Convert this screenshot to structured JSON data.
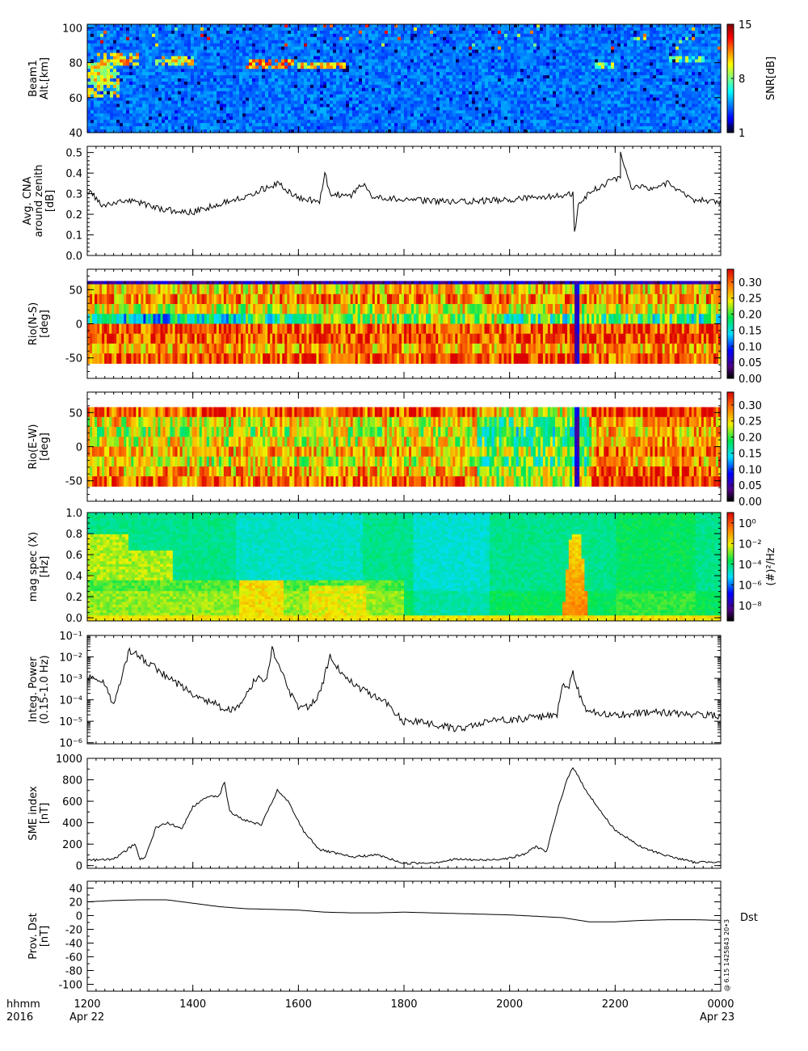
{
  "chart_data": [
    {
      "type": "heatmap",
      "ylabel_lines": [
        "Beam1",
        "Alt.[km]"
      ],
      "yticks": [
        "100",
        "80",
        "60",
        "40"
      ],
      "ytick_values": [
        100,
        80,
        60,
        40
      ],
      "ylim": [
        40,
        102
      ],
      "colorbar": {
        "label": "SNR[dB]",
        "ticks": [
          "15",
          "8",
          "1"
        ],
        "tick_values": [
          15,
          8,
          1
        ],
        "range": [
          1,
          15
        ]
      },
      "features": [
        {
          "t_start": 12.0,
          "t_end": 12.6,
          "alt_center": 70,
          "alt_halfwidth": 10,
          "level": 0.6
        },
        {
          "t_start": 12.2,
          "t_end": 13.0,
          "alt_center": 82,
          "alt_halfwidth": 3,
          "level": 0.7
        },
        {
          "t_start": 13.3,
          "t_end": 14.0,
          "alt_center": 81,
          "alt_halfwidth": 2,
          "level": 0.6
        },
        {
          "t_start": 15.0,
          "t_end": 15.9,
          "alt_center": 79,
          "alt_halfwidth": 3,
          "level": 0.75
        },
        {
          "t_start": 16.0,
          "t_end": 16.9,
          "alt_center": 79,
          "alt_halfwidth": 2,
          "level": 0.65
        },
        {
          "t_start": 21.6,
          "t_end": 22.0,
          "alt_center": 78,
          "alt_halfwidth": 2,
          "level": 0.5
        },
        {
          "t_start": 23.0,
          "t_end": 23.8,
          "alt_center": 82,
          "alt_halfwidth": 2,
          "level": 0.5
        }
      ]
    },
    {
      "type": "line",
      "ylabel_lines": [
        "Avg. CNA",
        "around zenith",
        "[dB]"
      ],
      "yticks": [
        "0.5",
        "0.4",
        "0.3",
        "0.2",
        "0.1",
        "0.0"
      ],
      "ytick_values": [
        0.5,
        0.4,
        0.3,
        0.2,
        0.1,
        0.0
      ],
      "ylim": [
        0,
        0.53
      ],
      "x": [
        12.0,
        12.3,
        12.8,
        13.5,
        14.0,
        14.5,
        15.0,
        15.6,
        16.0,
        16.4,
        16.5,
        16.6,
        17.0,
        17.2,
        17.4,
        18.0,
        19.0,
        20.0,
        20.5,
        21.0,
        21.2,
        21.23,
        21.3,
        21.6,
        21.9,
        22.1,
        22.1,
        22.3,
        22.7,
        23.0,
        23.5,
        24.0
      ],
      "y": [
        0.32,
        0.24,
        0.27,
        0.22,
        0.21,
        0.25,
        0.29,
        0.35,
        0.28,
        0.26,
        0.4,
        0.3,
        0.29,
        0.35,
        0.29,
        0.27,
        0.26,
        0.27,
        0.28,
        0.29,
        0.3,
        0.11,
        0.25,
        0.32,
        0.36,
        0.38,
        0.5,
        0.33,
        0.33,
        0.35,
        0.27,
        0.26
      ]
    },
    {
      "type": "heatmap",
      "ylabel_lines": [
        "Rio(N-S)",
        "[deg]"
      ],
      "yticks": [
        "50",
        "0",
        "-50"
      ],
      "ytick_values": [
        50,
        0,
        -50
      ],
      "ylim": [
        -80,
        80
      ],
      "colorbar": {
        "ticks": [
          "0.30",
          "0.25",
          "0.20",
          "0.15",
          "0.10",
          "0.05",
          "0.00"
        ],
        "tick_values": [
          0.3,
          0.25,
          0.2,
          0.15,
          0.1,
          0.05,
          0.0
        ],
        "range": [
          0,
          0.34
        ]
      }
    },
    {
      "type": "heatmap",
      "ylabel_lines": [
        "Rio(E-W)",
        "[deg]"
      ],
      "yticks": [
        "50",
        "0",
        "-50"
      ],
      "ytick_values": [
        50,
        0,
        -50
      ],
      "ylim": [
        -80,
        80
      ],
      "colorbar": {
        "ticks": [
          "0.30",
          "0.25",
          "0.20",
          "0.15",
          "0.10",
          "0.05",
          "0.00"
        ],
        "tick_values": [
          0.3,
          0.25,
          0.2,
          0.15,
          0.1,
          0.05,
          0.0
        ],
        "range": [
          0,
          0.34
        ]
      }
    },
    {
      "type": "heatmap",
      "ylabel_lines": [
        "mag spec (X)",
        "[Hz]"
      ],
      "yticks": [
        "1.0",
        "0.8",
        "0.6",
        "0.4",
        "0.2",
        "0.0"
      ],
      "ytick_values": [
        1.0,
        0.8,
        0.6,
        0.4,
        0.2,
        0.0
      ],
      "ylim": [
        -0.03,
        1.0
      ],
      "colorbar": {
        "label": "(#)²/Hz",
        "ticks": [
          "10⁰",
          "10⁻²",
          "10⁻⁴",
          "10⁻⁶",
          "10⁻⁸"
        ],
        "tick_exponents": [
          0,
          -2,
          -4,
          -6,
          -8
        ],
        "range_exponent": [
          -9.5,
          1
        ]
      }
    },
    {
      "type": "line",
      "log_y": true,
      "ylabel_lines": [
        "Integ. Power",
        "(0.15-1.0 Hz)"
      ],
      "yticks": [
        "10⁻¹",
        "10⁻²",
        "10⁻³",
        "10⁻⁴",
        "10⁻⁵",
        "10⁻⁶"
      ],
      "ytick_exponents": [
        -1,
        -2,
        -3,
        -4,
        -5,
        -6
      ],
      "ylim_exponent": [
        -6.05,
        -1
      ],
      "x": [
        12.0,
        12.3,
        12.5,
        12.8,
        13.0,
        13.3,
        13.6,
        14.0,
        14.5,
        14.8,
        15.0,
        15.2,
        15.4,
        15.5,
        15.8,
        16.0,
        16.2,
        16.4,
        16.6,
        16.8,
        17.2,
        17.6,
        18.0,
        18.5,
        19.0,
        19.5,
        20.0,
        20.5,
        20.9,
        21.0,
        21.1,
        21.2,
        21.3,
        21.4,
        21.6,
        22.0,
        22.5,
        23.0,
        23.5,
        24.0
      ],
      "y": [
        0.0012,
        0.0008,
        5e-05,
        0.02,
        0.01,
        0.003,
        0.0008,
        0.0002,
        5e-05,
        3e-05,
        0.0002,
        0.001,
        0.001,
        0.03,
        0.0003,
        4e-05,
        5e-05,
        0.0002,
        0.01,
        0.002,
        0.0003,
        0.0001,
        1e-05,
        8e-06,
        4e-06,
        1e-05,
        1.2e-05,
        1.5e-05,
        2e-05,
        0.0006,
        0.0003,
        0.002,
        0.0003,
        4e-05,
        3e-05,
        2e-05,
        2.5e-05,
        2.5e-05,
        2e-05,
        1.8e-05
      ]
    },
    {
      "type": "line",
      "ylabel_lines": [
        "SME index",
        "[nT]"
      ],
      "yticks": [
        "1000",
        "800",
        "600",
        "400",
        "200",
        "0"
      ],
      "ytick_values": [
        1000,
        800,
        600,
        400,
        200,
        0
      ],
      "ylim": [
        -25,
        1000
      ],
      "x": [
        12.0,
        12.5,
        12.9,
        13.0,
        13.1,
        13.2,
        13.3,
        13.5,
        13.8,
        14.0,
        14.3,
        14.5,
        14.6,
        14.7,
        15.0,
        15.3,
        15.6,
        15.8,
        16.1,
        16.4,
        17.0,
        17.5,
        18.0,
        18.6,
        19.0,
        19.5,
        20.0,
        20.3,
        20.5,
        20.7,
        20.9,
        21.1,
        21.2,
        21.4,
        21.7,
        22.0,
        22.5,
        23.0,
        23.5,
        24.0
      ],
      "y": [
        50,
        60,
        200,
        60,
        80,
        220,
        350,
        400,
        350,
        550,
        650,
        650,
        780,
        500,
        420,
        380,
        700,
        600,
        320,
        150,
        80,
        100,
        20,
        30,
        60,
        50,
        70,
        110,
        180,
        130,
        500,
        820,
        920,
        740,
        520,
        330,
        170,
        90,
        30,
        40
      ]
    },
    {
      "type": "line",
      "ylabel_lines": [
        "Prov. Dst",
        "[nT]"
      ],
      "yticks": [
        "40",
        "20",
        "0",
        "-20",
        "-40",
        "-60",
        "-80",
        "-100"
      ],
      "ytick_values": [
        40,
        20,
        0,
        -20,
        -40,
        -60,
        -80,
        -100
      ],
      "ylim": [
        -110,
        50
      ],
      "series_label": "Dst",
      "x": [
        12.0,
        12.5,
        13.0,
        13.5,
        14.0,
        14.5,
        15.0,
        15.5,
        16.0,
        16.5,
        17.0,
        17.5,
        18.0,
        18.5,
        19.0,
        19.5,
        20.0,
        20.5,
        21.0,
        21.5,
        22.0,
        22.5,
        23.0,
        23.5,
        24.0
      ],
      "y": [
        20,
        22,
        23,
        23,
        18,
        13,
        10,
        9,
        8,
        5,
        4,
        4,
        5,
        4,
        3,
        2,
        1,
        -1,
        -3,
        -9,
        -9,
        -7,
        -6,
        -6,
        -7
      ]
    }
  ],
  "x_axis": {
    "xlim": [
      12,
      24
    ],
    "tick_hours": [
      12,
      14,
      16,
      18,
      20,
      22,
      24
    ],
    "tick_labels": [
      "1200",
      "1400",
      "1600",
      "1800",
      "2000",
      "2200",
      "0000"
    ],
    "row_label_top": "hhmm",
    "row_label_bottom": "2016",
    "date_start": "Apr 22",
    "date_end": "Apr 23"
  },
  "stamp": "@ 6.15 1425843 20•3",
  "colors": {
    "line": "#000000",
    "axis": "#000000"
  }
}
